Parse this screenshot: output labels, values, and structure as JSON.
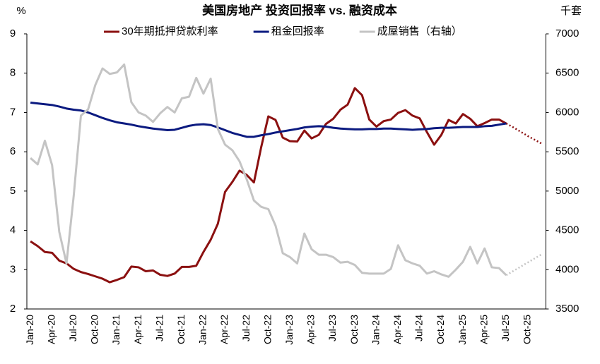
{
  "chart_data": {
    "type": "line",
    "title": "美国房地产 投资回报率 vs. 融资成本",
    "y_label": "%",
    "y2_label": "千套",
    "categories": [
      "Jan-20",
      null,
      null,
      "Apr-20",
      null,
      null,
      "Jul-20",
      null,
      null,
      "Oct-20",
      null,
      null,
      "Jan-21",
      null,
      null,
      "Apr-21",
      null,
      null,
      "Jul-21",
      null,
      null,
      "Oct-21",
      null,
      null,
      "Jan-22",
      null,
      null,
      "Apr-22",
      null,
      null,
      "Jul-22",
      null,
      null,
      "Oct-22",
      null,
      null,
      "Jan-23",
      null,
      null,
      "Apr-23",
      null,
      null,
      "Jul-23",
      null,
      null,
      "Oct-23",
      null,
      null,
      "Jan-24",
      null,
      null,
      "Apr-24",
      null,
      null,
      "Jul-24",
      null,
      null,
      "Oct-24",
      null,
      null,
      "Jan-25",
      null,
      null,
      "Apr-25",
      null,
      null,
      "Jul-25",
      null,
      null,
      "Oct-25",
      null,
      null
    ],
    "ylim": [
      2,
      9
    ],
    "yticks": [
      2,
      3,
      4,
      5,
      6,
      7,
      8,
      9
    ],
    "y2lim": [
      3500,
      7000
    ],
    "y2ticks": [
      3500,
      4000,
      4500,
      5000,
      5500,
      6000,
      6500,
      7000
    ],
    "series": [
      {
        "name": "30年期抵押贷款利率",
        "color": "#8b1010",
        "axis": "y",
        "values": [
          3.72,
          3.6,
          3.45,
          3.43,
          3.23,
          3.16,
          3.02,
          2.94,
          2.89,
          2.83,
          2.77,
          2.68,
          2.74,
          2.81,
          3.08,
          3.06,
          2.96,
          2.98,
          2.87,
          2.84,
          2.9,
          3.07,
          3.07,
          3.1,
          3.45,
          3.76,
          4.17,
          4.98,
          5.23,
          5.52,
          5.41,
          5.22,
          6.11,
          6.9,
          6.81,
          6.36,
          6.27,
          6.26,
          6.54,
          6.34,
          6.43,
          6.71,
          6.84,
          7.07,
          7.2,
          7.62,
          7.44,
          6.82,
          6.64,
          6.78,
          6.82,
          6.99,
          7.06,
          6.92,
          6.85,
          6.5,
          6.18,
          6.43,
          6.81,
          6.72,
          6.96,
          6.84,
          6.65,
          6.73,
          6.82,
          6.82,
          6.72,
          null,
          null,
          null,
          null,
          null
        ]
      },
      {
        "color": "#8b1010",
        "axis": "y",
        "dash": true,
        "values": [
          null,
          null,
          null,
          null,
          null,
          null,
          null,
          null,
          null,
          null,
          null,
          null,
          null,
          null,
          null,
          null,
          null,
          null,
          null,
          null,
          null,
          null,
          null,
          null,
          null,
          null,
          null,
          null,
          null,
          null,
          null,
          null,
          null,
          null,
          null,
          null,
          null,
          null,
          null,
          null,
          null,
          null,
          null,
          null,
          null,
          null,
          null,
          null,
          null,
          null,
          null,
          null,
          null,
          null,
          null,
          null,
          null,
          null,
          null,
          null,
          null,
          null,
          null,
          null,
          null,
          null,
          6.72,
          6.62,
          6.51,
          6.4,
          6.3,
          6.2
        ]
      },
      {
        "name": "租金回报率",
        "color": "#0b1a80",
        "axis": "y",
        "values": [
          7.25,
          7.23,
          7.21,
          7.19,
          7.15,
          7.1,
          7.07,
          7.05,
          7.0,
          6.93,
          6.86,
          6.8,
          6.75,
          6.72,
          6.69,
          6.65,
          6.62,
          6.59,
          6.57,
          6.55,
          6.56,
          6.61,
          6.66,
          6.69,
          6.7,
          6.68,
          6.62,
          6.55,
          6.48,
          6.43,
          6.38,
          6.38,
          6.42,
          6.45,
          6.49,
          6.52,
          6.55,
          6.58,
          6.62,
          6.64,
          6.65,
          6.64,
          6.61,
          6.59,
          6.58,
          6.57,
          6.57,
          6.58,
          6.58,
          6.59,
          6.59,
          6.58,
          6.57,
          6.56,
          6.57,
          6.58,
          6.6,
          6.61,
          6.61,
          6.62,
          6.63,
          6.63,
          6.63,
          6.65,
          6.66,
          6.69,
          6.72,
          null,
          null,
          null,
          null,
          null
        ]
      },
      {
        "name": "成屋销售（右轴）",
        "color": "#c4c4c4",
        "axis": "y2",
        "values": [
          5420,
          5340,
          5640,
          5330,
          4480,
          4080,
          4940,
          5960,
          6040,
          6350,
          6560,
          6490,
          6510,
          6610,
          6130,
          6000,
          5960,
          5880,
          5990,
          6070,
          6000,
          6180,
          6200,
          6440,
          6240,
          6430,
          5790,
          5590,
          5520,
          5380,
          5150,
          4880,
          4800,
          4770,
          4560,
          4210,
          4160,
          4080,
          4460,
          4260,
          4190,
          4190,
          4160,
          4090,
          4100,
          4060,
          3960,
          3950,
          3950,
          3950,
          4010,
          4310,
          4120,
          4080,
          4050,
          3950,
          3980,
          3940,
          3910,
          4000,
          4100,
          4290,
          4080,
          4270,
          4030,
          4020,
          3930,
          null,
          null,
          null,
          null,
          null
        ]
      },
      {
        "color": "#c4c4c4",
        "axis": "y2",
        "dash": true,
        "values": [
          null,
          null,
          null,
          null,
          null,
          null,
          null,
          null,
          null,
          null,
          null,
          null,
          null,
          null,
          null,
          null,
          null,
          null,
          null,
          null,
          null,
          null,
          null,
          null,
          null,
          null,
          null,
          null,
          null,
          null,
          null,
          null,
          null,
          null,
          null,
          null,
          null,
          null,
          null,
          null,
          null,
          null,
          null,
          null,
          null,
          null,
          null,
          null,
          null,
          null,
          null,
          null,
          null,
          null,
          null,
          null,
          null,
          null,
          null,
          null,
          null,
          null,
          null,
          null,
          null,
          null,
          3930,
          3984,
          4038,
          4092,
          4146,
          4200
        ]
      }
    ]
  }
}
